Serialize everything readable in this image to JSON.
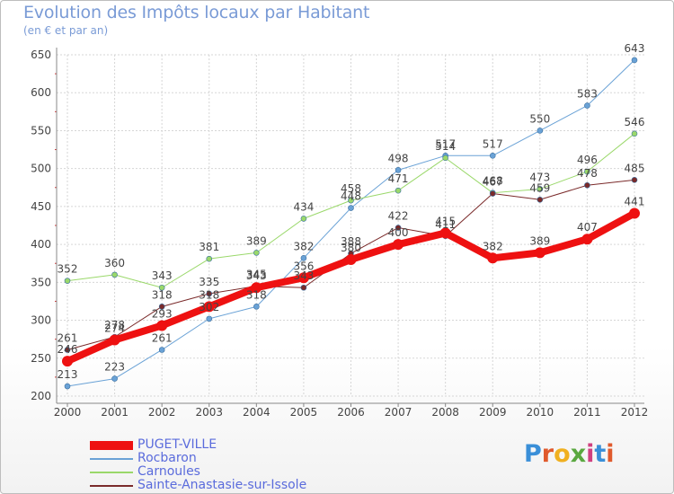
{
  "header": {
    "title": "Evolution des Impôts locaux par Habitant",
    "subtitle": "(en € et par an)"
  },
  "logo": {
    "text": "Proxiti",
    "letter_colors": [
      "#3a8fd8",
      "#e05a2c",
      "#f0b020",
      "#5aa840",
      "#d04080",
      "#3a8fd8",
      "#e05a2c"
    ]
  },
  "chart_data": {
    "type": "line",
    "x": [
      2000,
      2001,
      2002,
      2003,
      2004,
      2005,
      2006,
      2007,
      2008,
      2009,
      2010,
      2011,
      2012
    ],
    "ylim": [
      200,
      650
    ],
    "yticks": [
      200,
      250,
      300,
      350,
      400,
      450,
      500,
      550,
      600,
      650
    ],
    "grid": true,
    "legend_position": "bottom-left",
    "series": [
      {
        "name": "PUGET-VILLE",
        "color": "#ee1111",
        "width": 8,
        "marker": 6,
        "values": [
          246,
          274,
          293,
          318,
          343,
          356,
          380,
          400,
          415,
          382,
          389,
          407,
          441
        ]
      },
      {
        "name": "Rocbaron",
        "color": "#6aa2d6",
        "width": 1,
        "marker": 3,
        "values": [
          213,
          223,
          261,
          302,
          318,
          382,
          448,
          498,
          517,
          517,
          550,
          583,
          643
        ]
      },
      {
        "name": "Carnoules",
        "color": "#9ad86a",
        "width": 1,
        "marker": 3,
        "values": [
          352,
          360,
          343,
          381,
          389,
          434,
          458,
          471,
          514,
          468,
          473,
          496,
          546
        ]
      },
      {
        "name": "Sainte-Anastasie-sur-Issole",
        "color": "#7a2a2a",
        "width": 1,
        "marker": 3,
        "values": [
          261,
          278,
          318,
          335,
          345,
          343,
          388,
          422,
          411,
          467,
          459,
          478,
          485
        ]
      }
    ]
  }
}
